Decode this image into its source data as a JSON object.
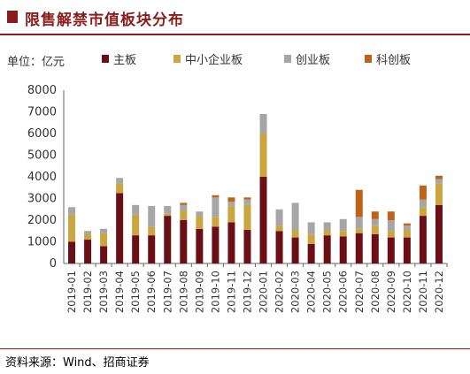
{
  "title": "限售解禁市值板块分布",
  "source": "资料来源：Wind、招商证券",
  "chart_data": {
    "type": "bar",
    "stacked": true,
    "unit_label": "单位：亿元",
    "ylim": [
      0,
      8000
    ],
    "yticks": [
      0,
      1000,
      2000,
      3000,
      4000,
      5000,
      6000,
      7000,
      8000
    ],
    "grid": false,
    "legend_position": "top",
    "categories": [
      "2019-01",
      "2019-02",
      "2019-03",
      "2019-04",
      "2019-05",
      "2019-06",
      "2019-07",
      "2019-08",
      "2019-09",
      "2019-10",
      "2019-11",
      "2019-12",
      "2020-01",
      "2020-02",
      "2020-03",
      "2020-04",
      "2020-05",
      "2020-06",
      "2020-07",
      "2020-08",
      "2020-09",
      "2020-10",
      "2020-11",
      "2020-12"
    ],
    "series": [
      {
        "name": "主板",
        "color": "#6b0f17",
        "values": [
          1000,
          1100,
          800,
          3250,
          1300,
          1300,
          2200,
          2000,
          1600,
          1700,
          1900,
          1550,
          4000,
          1500,
          1200,
          900,
          1300,
          1250,
          1400,
          1350,
          1200,
          1200,
          2200,
          2700
        ]
      },
      {
        "name": "中小企业板",
        "color": "#c9a640",
        "values": [
          1250,
          250,
          600,
          450,
          950,
          400,
          100,
          450,
          600,
          450,
          750,
          1150,
          2000,
          250,
          350,
          450,
          250,
          250,
          200,
          400,
          300,
          350,
          400,
          1000
        ]
      },
      {
        "name": "创业板",
        "color": "#a6a6a6",
        "values": [
          350,
          150,
          200,
          250,
          450,
          950,
          350,
          250,
          200,
          900,
          200,
          250,
          900,
          750,
          1250,
          550,
          350,
          550,
          550,
          300,
          500,
          200,
          350,
          200
        ]
      },
      {
        "name": "科创板",
        "color": "#c0631a",
        "values": [
          0,
          0,
          0,
          0,
          0,
          0,
          0,
          100,
          0,
          100,
          200,
          100,
          0,
          0,
          0,
          0,
          0,
          0,
          1250,
          350,
          400,
          100,
          650,
          150
        ]
      }
    ]
  }
}
